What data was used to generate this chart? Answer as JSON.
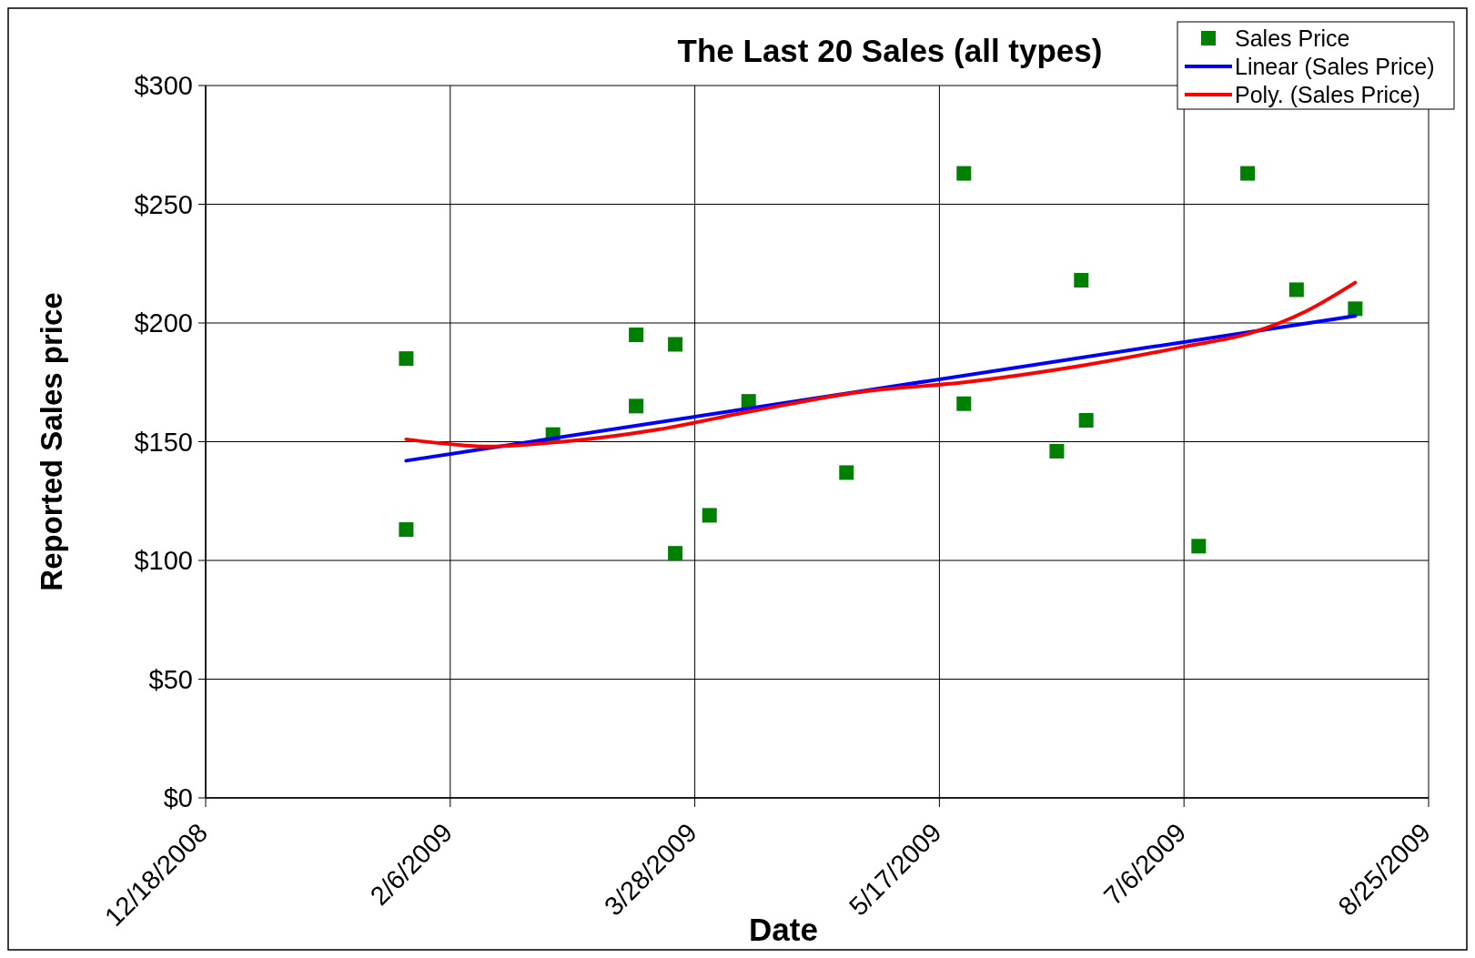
{
  "chart_data": {
    "type": "scatter",
    "title": "The Last 20 Sales (all types)",
    "xlabel": "Date",
    "ylabel": "Reported Sales price",
    "xlim": [
      "2008-12-18",
      "2009-08-25"
    ],
    "xticks": [
      {
        "value": "2008-12-18",
        "label": "12/18/2008"
      },
      {
        "value": "2009-02-06",
        "label": "2/6/2009"
      },
      {
        "value": "2009-03-28",
        "label": "3/28/2009"
      },
      {
        "value": "2009-05-17",
        "label": "5/17/2009"
      },
      {
        "value": "2009-07-06",
        "label": "7/6/2009"
      },
      {
        "value": "2009-08-25",
        "label": "8/25/2009"
      }
    ],
    "ylim": [
      0,
      300
    ],
    "yticks": [
      {
        "value": 0,
        "label": "$0"
      },
      {
        "value": 50,
        "label": "$50"
      },
      {
        "value": 100,
        "label": "$100"
      },
      {
        "value": 150,
        "label": "$150"
      },
      {
        "value": 200,
        "label": "$200"
      },
      {
        "value": 250,
        "label": "$250"
      },
      {
        "value": 300,
        "label": "$300"
      }
    ],
    "grid": true,
    "legend": "top right",
    "marker": "square",
    "series": [
      {
        "name": "Sales Price",
        "color": "#008000",
        "x": [
          "2009-01-28",
          "2009-01-28",
          "2009-02-27",
          "2009-03-16",
          "2009-03-16",
          "2009-03-24",
          "2009-03-24",
          "2009-03-31",
          "2009-04-08",
          "2009-04-28",
          "2009-05-22",
          "2009-05-22",
          "2009-06-10",
          "2009-06-15",
          "2009-06-16",
          "2009-07-09",
          "2009-07-19",
          "2009-07-29",
          "2009-08-10"
        ],
        "values": [
          185,
          113,
          153,
          165,
          195,
          191,
          103,
          119,
          167,
          137,
          263,
          166,
          146,
          218,
          159,
          106,
          263,
          214,
          206
        ]
      },
      {
        "name": "Linear (Sales Price)",
        "type": "line",
        "marker": "none",
        "color": "#0000ff",
        "x": [
          "2009-01-28",
          "2009-08-10"
        ],
        "values": [
          142,
          203
        ]
      },
      {
        "name": "Poly. (Sales Price)",
        "type": "line",
        "marker": "none",
        "color": "#ff0000",
        "x": [
          "2009-01-28",
          "2009-02-14",
          "2009-03-01",
          "2009-03-20",
          "2009-04-09",
          "2009-05-01",
          "2009-05-22",
          "2009-06-15",
          "2009-07-06",
          "2009-07-20",
          "2009-07-31",
          "2009-08-10"
        ],
        "values": [
          151,
          148,
          150,
          155,
          163,
          171,
          175,
          182,
          190,
          196,
          205,
          217
        ]
      }
    ]
  }
}
